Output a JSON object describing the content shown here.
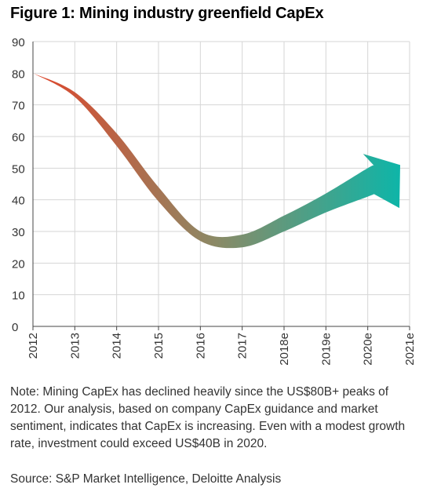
{
  "title": "Figure 1: Mining industry greenfield CapEx",
  "chart_data": {
    "type": "area",
    "categories": [
      "2012",
      "2013",
      "2014",
      "2015",
      "2016",
      "2017",
      "2018e",
      "2019e",
      "2020e",
      "2021e"
    ],
    "ylim": [
      0,
      90
    ],
    "yticks": [
      "0",
      "10",
      "20",
      "30",
      "40",
      "50",
      "60",
      "70",
      "80",
      "90"
    ],
    "grid": true,
    "series": [
      {
        "upper": [
          80,
          74,
          61,
          44,
          30,
          29,
          35,
          42,
          50,
          51
        ],
        "lower": [
          80,
          72.5,
          57,
          39.5,
          27,
          25,
          30,
          36,
          41,
          41
        ]
      }
    ],
    "colors": {
      "start": "#e0452b",
      "middle": "#8a8a66",
      "end": "#0eb5a8"
    }
  },
  "note": "Note: Mining CapEx has declined heavily since the US$80B+ peaks of 2012. Our analysis, based on company CapEx guidance and market sentiment, indicates that CapEx is increasing. Even with a modest growth rate, investment could exceed US$40B in 2020.",
  "source": "Source: S&P Market Intelligence, Deloitte Analysis"
}
